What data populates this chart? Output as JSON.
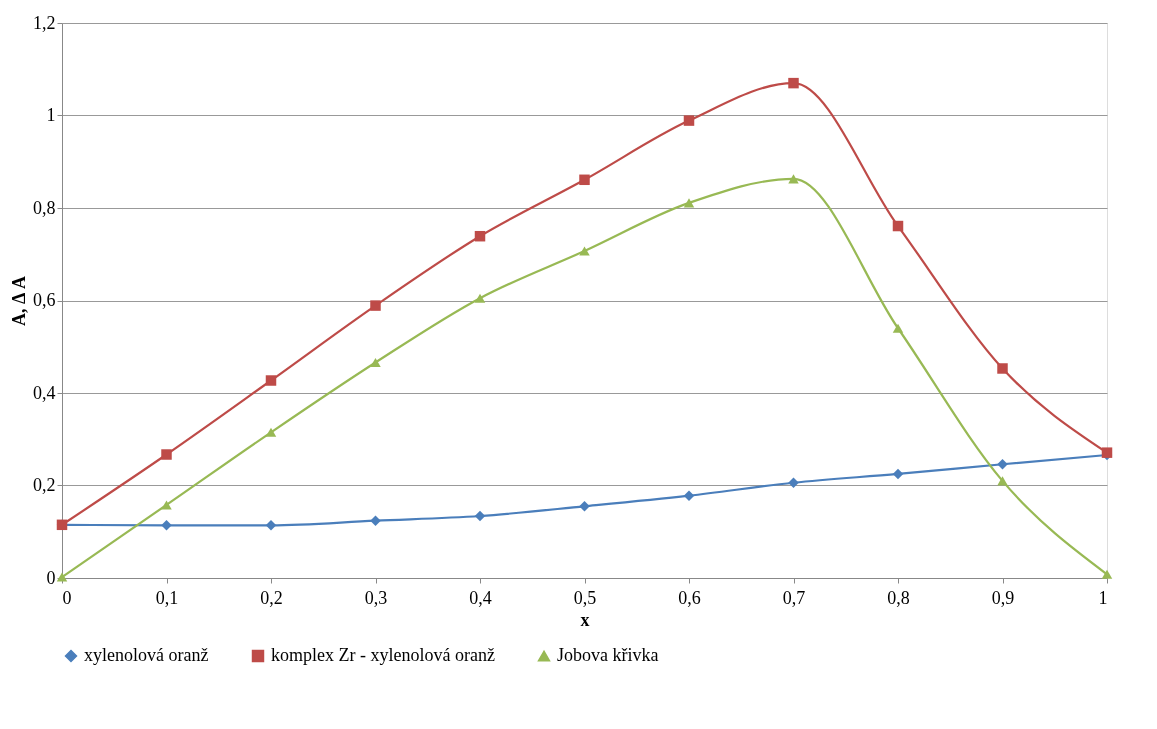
{
  "chart_data": {
    "type": "line",
    "xlabel": "x",
    "ylabel": "A, Δ A",
    "x": [
      0,
      0.1,
      0.2,
      0.3,
      0.4,
      0.5,
      0.6,
      0.7,
      0.8,
      0.9,
      1
    ],
    "series": [
      {
        "name": "xylenolová oranž",
        "color": "#4a7ebb",
        "marker": "diamond",
        "values": [
          0.115,
          0.114,
          0.114,
          0.124,
          0.134,
          0.155,
          0.178,
          0.206,
          0.225,
          0.246,
          0.266
        ]
      },
      {
        "name": "komplex Zr - xylenolová oranž",
        "color": "#be4b48",
        "marker": "square",
        "values": [
          0.115,
          0.267,
          0.427,
          0.589,
          0.739,
          0.861,
          0.989,
          1.07,
          0.761,
          0.453,
          0.271
        ]
      },
      {
        "name": "Jobova křivka",
        "color": "#98b954",
        "marker": "triangle",
        "values": [
          0.002,
          0.158,
          0.315,
          0.466,
          0.605,
          0.707,
          0.811,
          0.863,
          0.54,
          0.21,
          0.008
        ]
      }
    ],
    "xlim": [
      0,
      1
    ],
    "ylim": [
      0,
      1.2
    ],
    "xticks": [
      0,
      {
        "value": 0.1,
        "label": "0,1"
      },
      {
        "value": 0.2,
        "label": "0,2"
      },
      {
        "value": 0.3,
        "label": "0,3"
      },
      {
        "value": 0.4,
        "label": "0,4"
      },
      {
        "value": 0.5,
        "label": "0,5"
      },
      {
        "value": 0.6,
        "label": "0,6"
      },
      {
        "value": 0.7,
        "label": "0,7"
      },
      {
        "value": 0.8,
        "label": "0,8"
      },
      {
        "value": 0.9,
        "label": "0,9"
      },
      1
    ],
    "yticks": [
      0,
      {
        "value": 0.2,
        "label": "0,2"
      },
      {
        "value": 0.4,
        "label": "0,4"
      },
      {
        "value": 0.6,
        "label": "0,6"
      },
      {
        "value": 0.8,
        "label": "0,8"
      },
      1,
      {
        "value": 1.2,
        "label": "1,2"
      }
    ],
    "grid": "y",
    "legend": "bottom",
    "line_style": "solid"
  }
}
